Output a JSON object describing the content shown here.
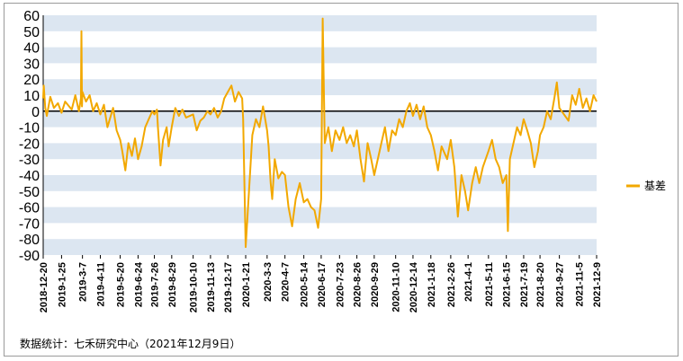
{
  "chart_data": {
    "type": "line",
    "title": "",
    "xlabel": "",
    "ylabel": "",
    "ylim": [
      -90,
      60
    ],
    "yticks": [
      "60",
      "50",
      "40",
      "30",
      "20",
      "10",
      "0",
      "-10",
      "-20",
      "-30",
      "-40",
      "-50",
      "-60",
      "-70",
      "-80",
      "-90"
    ],
    "categories": [
      "2018-12-20",
      "2019-1-25",
      "2019-3-7",
      "2019-4-11",
      "2019-5-20",
      "2019-6-24",
      "2019-7-26",
      "2019-8-29",
      "2019-10-10",
      "2019-11-13",
      "2019-12-17",
      "2020-1-21",
      "2020-3-3",
      "2020-4-7",
      "2020-5-14",
      "2020-6-17",
      "2020-7-23",
      "2020-8-26",
      "2020-9-29",
      "2020-11-10",
      "2020-12-14",
      "2021-1-18",
      "2021-2-26",
      "2021-4-1",
      "2021-5-11",
      "2021-6-15",
      "2021-7-19",
      "2021-8-20",
      "2021-9-27",
      "2021-11-5",
      "2021-12-9"
    ],
    "grid": "horizontal-bands",
    "legend_position": "right",
    "colors": {
      "series": "#F2A800",
      "band": "#DCE6F1",
      "zero_line": "#000000"
    },
    "series": [
      {
        "name": "基差",
        "points": [
          {
            "x": "2018-12-20",
            "y": 8
          },
          {
            "x": "2018-12-21",
            "y": 16
          },
          {
            "x": "2018-12-24",
            "y": 2
          },
          {
            "x": "2018-12-27",
            "y": -3
          },
          {
            "x": "2019-1-3",
            "y": 9
          },
          {
            "x": "2019-1-10",
            "y": 2
          },
          {
            "x": "2019-1-18",
            "y": 5
          },
          {
            "x": "2019-1-25",
            "y": -1
          },
          {
            "x": "2019-2-1",
            "y": 6
          },
          {
            "x": "2019-2-14",
            "y": 1
          },
          {
            "x": "2019-2-21",
            "y": 10
          },
          {
            "x": "2019-2-28",
            "y": 0
          },
          {
            "x": "2019-3-4",
            "y": 8
          },
          {
            "x": "2019-3-5",
            "y": 50
          },
          {
            "x": "2019-3-6",
            "y": 3
          },
          {
            "x": "2019-3-7",
            "y": 12
          },
          {
            "x": "2019-3-14",
            "y": 6
          },
          {
            "x": "2019-3-21",
            "y": 10
          },
          {
            "x": "2019-3-28",
            "y": 0
          },
          {
            "x": "2019-4-4",
            "y": 5
          },
          {
            "x": "2019-4-11",
            "y": -2
          },
          {
            "x": "2019-4-18",
            "y": 4
          },
          {
            "x": "2019-4-25",
            "y": -10
          },
          {
            "x": "2019-5-6",
            "y": 2
          },
          {
            "x": "2019-5-13",
            "y": -12
          },
          {
            "x": "2019-5-20",
            "y": -18
          },
          {
            "x": "2019-5-24",
            "y": -25
          },
          {
            "x": "2019-5-30",
            "y": -37
          },
          {
            "x": "2019-6-5",
            "y": -20
          },
          {
            "x": "2019-6-12",
            "y": -28
          },
          {
            "x": "2019-6-18",
            "y": -17
          },
          {
            "x": "2019-6-24",
            "y": -30
          },
          {
            "x": "2019-7-1",
            "y": -22
          },
          {
            "x": "2019-7-8",
            "y": -10
          },
          {
            "x": "2019-7-15",
            "y": -5
          },
          {
            "x": "2019-7-22",
            "y": 0
          },
          {
            "x": "2019-7-26",
            "y": -2
          },
          {
            "x": "2019-7-31",
            "y": 1
          },
          {
            "x": "2019-8-2",
            "y": -10
          },
          {
            "x": "2019-8-7",
            "y": -34
          },
          {
            "x": "2019-8-12",
            "y": -18
          },
          {
            "x": "2019-8-19",
            "y": -10
          },
          {
            "x": "2019-8-23",
            "y": -22
          },
          {
            "x": "2019-8-29",
            "y": -10
          },
          {
            "x": "2019-9-5",
            "y": 2
          },
          {
            "x": "2019-9-12",
            "y": -3
          },
          {
            "x": "2019-9-19",
            "y": 1
          },
          {
            "x": "2019-9-26",
            "y": -4
          },
          {
            "x": "2019-10-10",
            "y": -2
          },
          {
            "x": "2019-10-17",
            "y": -12
          },
          {
            "x": "2019-10-24",
            "y": -6
          },
          {
            "x": "2019-10-31",
            "y": -4
          },
          {
            "x": "2019-11-7",
            "y": 0
          },
          {
            "x": "2019-11-13",
            "y": -2
          },
          {
            "x": "2019-11-20",
            "y": 2
          },
          {
            "x": "2019-11-27",
            "y": -4
          },
          {
            "x": "2019-12-4",
            "y": 0
          },
          {
            "x": "2019-12-10",
            "y": 8
          },
          {
            "x": "2019-12-17",
            "y": 12
          },
          {
            "x": "2019-12-24",
            "y": 16
          },
          {
            "x": "2019-12-31",
            "y": 6
          },
          {
            "x": "2020-1-7",
            "y": 12
          },
          {
            "x": "2020-1-14",
            "y": 8
          },
          {
            "x": "2020-1-16",
            "y": -5
          },
          {
            "x": "2020-1-21",
            "y": -85
          },
          {
            "x": "2020-2-3",
            "y": -15
          },
          {
            "x": "2020-2-10",
            "y": -5
          },
          {
            "x": "2020-2-17",
            "y": -10
          },
          {
            "x": "2020-2-24",
            "y": 3
          },
          {
            "x": "2020-3-3",
            "y": -12
          },
          {
            "x": "2020-3-6",
            "y": -22
          },
          {
            "x": "2020-3-10",
            "y": -45
          },
          {
            "x": "2020-3-13",
            "y": -55
          },
          {
            "x": "2020-3-18",
            "y": -30
          },
          {
            "x": "2020-3-25",
            "y": -42
          },
          {
            "x": "2020-4-1",
            "y": -38
          },
          {
            "x": "2020-4-7",
            "y": -40
          },
          {
            "x": "2020-4-14",
            "y": -60
          },
          {
            "x": "2020-4-21",
            "y": -72
          },
          {
            "x": "2020-4-28",
            "y": -55
          },
          {
            "x": "2020-5-6",
            "y": -45
          },
          {
            "x": "2020-5-14",
            "y": -57
          },
          {
            "x": "2020-5-21",
            "y": -55
          },
          {
            "x": "2020-5-28",
            "y": -60
          },
          {
            "x": "2020-6-4",
            "y": -62
          },
          {
            "x": "2020-6-11",
            "y": -73
          },
          {
            "x": "2020-6-17",
            "y": -55
          },
          {
            "x": "2020-6-20",
            "y": 58
          },
          {
            "x": "2020-6-24",
            "y": -20
          },
          {
            "x": "2020-7-1",
            "y": -10
          },
          {
            "x": "2020-7-8",
            "y": -25
          },
          {
            "x": "2020-7-15",
            "y": -12
          },
          {
            "x": "2020-7-23",
            "y": -18
          },
          {
            "x": "2020-7-30",
            "y": -10
          },
          {
            "x": "2020-8-6",
            "y": -20
          },
          {
            "x": "2020-8-13",
            "y": -15
          },
          {
            "x": "2020-8-20",
            "y": -22
          },
          {
            "x": "2020-8-26",
            "y": -12
          },
          {
            "x": "2020-9-2",
            "y": -30
          },
          {
            "x": "2020-9-9",
            "y": -44
          },
          {
            "x": "2020-9-16",
            "y": -20
          },
          {
            "x": "2020-9-23",
            "y": -30
          },
          {
            "x": "2020-9-29",
            "y": -40
          },
          {
            "x": "2020-10-13",
            "y": -20
          },
          {
            "x": "2020-10-20",
            "y": -10
          },
          {
            "x": "2020-10-27",
            "y": -25
          },
          {
            "x": "2020-11-3",
            "y": -12
          },
          {
            "x": "2020-11-10",
            "y": -15
          },
          {
            "x": "2020-11-17",
            "y": -5
          },
          {
            "x": "2020-11-24",
            "y": -10
          },
          {
            "x": "2020-12-1",
            "y": 0
          },
          {
            "x": "2020-12-8",
            "y": 5
          },
          {
            "x": "2020-12-14",
            "y": -3
          },
          {
            "x": "2020-12-21",
            "y": 4
          },
          {
            "x": "2020-12-28",
            "y": -5
          },
          {
            "x": "2021-1-4",
            "y": 3
          },
          {
            "x": "2021-1-11",
            "y": -10
          },
          {
            "x": "2021-1-18",
            "y": -15
          },
          {
            "x": "2021-1-25",
            "y": -25
          },
          {
            "x": "2021-2-1",
            "y": -37
          },
          {
            "x": "2021-2-8",
            "y": -22
          },
          {
            "x": "2021-2-19",
            "y": -30
          },
          {
            "x": "2021-2-26",
            "y": -18
          },
          {
            "x": "2021-3-5",
            "y": -35
          },
          {
            "x": "2021-3-12",
            "y": -66
          },
          {
            "x": "2021-3-19",
            "y": -40
          },
          {
            "x": "2021-3-26",
            "y": -50
          },
          {
            "x": "2021-4-1",
            "y": -62
          },
          {
            "x": "2021-4-9",
            "y": -45
          },
          {
            "x": "2021-4-16",
            "y": -35
          },
          {
            "x": "2021-4-23",
            "y": -45
          },
          {
            "x": "2021-4-30",
            "y": -35
          },
          {
            "x": "2021-5-11",
            "y": -25
          },
          {
            "x": "2021-5-18",
            "y": -18
          },
          {
            "x": "2021-5-25",
            "y": -30
          },
          {
            "x": "2021-6-1",
            "y": -35
          },
          {
            "x": "2021-6-8",
            "y": -45
          },
          {
            "x": "2021-6-15",
            "y": -40
          },
          {
            "x": "2021-6-18",
            "y": -75
          },
          {
            "x": "2021-6-22",
            "y": -30
          },
          {
            "x": "2021-6-29",
            "y": -20
          },
          {
            "x": "2021-7-6",
            "y": -10
          },
          {
            "x": "2021-7-13",
            "y": -15
          },
          {
            "x": "2021-7-19",
            "y": -5
          },
          {
            "x": "2021-7-26",
            "y": -12
          },
          {
            "x": "2021-8-2",
            "y": -20
          },
          {
            "x": "2021-8-9",
            "y": -35
          },
          {
            "x": "2021-8-16",
            "y": -25
          },
          {
            "x": "2021-8-20",
            "y": -15
          },
          {
            "x": "2021-8-27",
            "y": -10
          },
          {
            "x": "2021-9-3",
            "y": 0
          },
          {
            "x": "2021-9-10",
            "y": -5
          },
          {
            "x": "2021-9-17",
            "y": 8
          },
          {
            "x": "2021-9-22",
            "y": 18
          },
          {
            "x": "2021-9-27",
            "y": 2
          },
          {
            "x": "2021-10-15",
            "y": -6
          },
          {
            "x": "2021-10-22",
            "y": 10
          },
          {
            "x": "2021-10-29",
            "y": 4
          },
          {
            "x": "2021-11-5",
            "y": 14
          },
          {
            "x": "2021-11-12",
            "y": 2
          },
          {
            "x": "2021-11-19",
            "y": 8
          },
          {
            "x": "2021-11-26",
            "y": 0
          },
          {
            "x": "2021-12-3",
            "y": 10
          },
          {
            "x": "2021-12-9",
            "y": 6
          }
        ]
      }
    ]
  },
  "source_note": "数据统计：七禾研究中心（2021年12月9日）"
}
